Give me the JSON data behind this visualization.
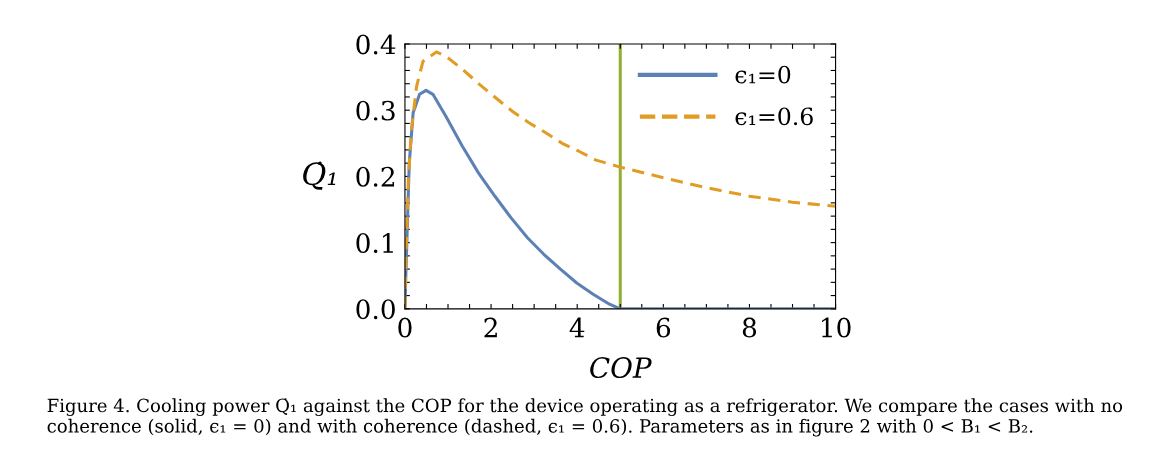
{
  "chart_data": {
    "type": "line",
    "xlabel": "COP",
    "ylabel": "Q̇₁",
    "xlim": [
      0,
      10
    ],
    "ylim": [
      0,
      0.4
    ],
    "xticks": [
      0,
      {
        "value": 0.5,
        "label": null
      },
      {
        "value": 1,
        "label": null
      },
      {
        "value": 1.5,
        "label": null
      },
      2,
      {
        "value": 2.5,
        "label": null
      },
      {
        "value": 3,
        "label": null
      },
      {
        "value": 3.5,
        "label": null
      },
      4,
      {
        "value": 4.5,
        "label": null
      },
      {
        "value": 5,
        "label": null
      },
      {
        "value": 5.5,
        "label": null
      },
      6,
      {
        "value": 6.5,
        "label": null
      },
      {
        "value": 7,
        "label": null
      },
      {
        "value": 7.5,
        "label": null
      },
      8,
      {
        "value": 8.5,
        "label": null
      },
      {
        "value": 9,
        "label": null
      },
      {
        "value": 9.5,
        "label": null
      },
      10
    ],
    "yticks": [
      {
        "value": 0,
        "label": "0.0"
      },
      {
        "value": 0.02,
        "label": null
      },
      {
        "value": 0.04,
        "label": null
      },
      {
        "value": 0.06,
        "label": null
      },
      {
        "value": 0.08,
        "label": null
      },
      0.1,
      {
        "value": 0.12,
        "label": null
      },
      {
        "value": 0.14,
        "label": null
      },
      {
        "value": 0.16,
        "label": null
      },
      {
        "value": 0.18,
        "label": null
      },
      0.2,
      {
        "value": 0.22,
        "label": null
      },
      {
        "value": 0.24,
        "label": null
      },
      {
        "value": 0.26,
        "label": null
      },
      {
        "value": 0.28,
        "label": null
      },
      0.3,
      {
        "value": 0.32,
        "label": null
      },
      {
        "value": 0.34,
        "label": null
      },
      {
        "value": 0.36,
        "label": null
      },
      {
        "value": 0.38,
        "label": null
      },
      0.4
    ],
    "grid": false,
    "legend": "top right",
    "series": [
      {
        "name": "ϵ₁=0",
        "color": "#5e81b5",
        "line_style": "solid",
        "x": [
          0,
          0.02,
          0.1,
          0.19,
          0.34,
          0.49,
          0.65,
          0.95,
          1.33,
          1.71,
          2.09,
          2.47,
          2.85,
          3.23,
          3.61,
          3.99,
          4.37,
          4.75,
          5.0,
          6,
          8,
          10
        ],
        "values": [
          0,
          0.049,
          0.22,
          0.296,
          0.324,
          0.33,
          0.324,
          0.291,
          0.246,
          0.205,
          0.17,
          0.137,
          0.107,
          0.082,
          0.06,
          0.039,
          0.022,
          0.007,
          0,
          0,
          0,
          0
        ]
      },
      {
        "name": "ϵ₁=0.6",
        "color": "#e19c24",
        "line_style": "dashed",
        "x": [
          0,
          0.02,
          0.08,
          0.15,
          0.27,
          0.42,
          0.73,
          0.96,
          1.35,
          1.73,
          2.12,
          2.5,
          2.88,
          3.27,
          3.65,
          4.04,
          4.42,
          5.0,
          6,
          7,
          8,
          9,
          10
        ],
        "values": [
          0,
          0.07,
          0.195,
          0.27,
          0.336,
          0.374,
          0.388,
          0.381,
          0.361,
          0.339,
          0.318,
          0.298,
          0.281,
          0.266,
          0.25,
          0.238,
          0.225,
          0.214,
          0.198,
          0.183,
          0.17,
          0.161,
          0.155
        ]
      }
    ],
    "ref_lines": [
      {
        "axis": "x",
        "value": 5,
        "color": "#8fb131",
        "line_style": "solid"
      }
    ],
    "annotations": [
      "Figure 4. Cooling power Q̇₁ against the COP for the device operating as a refrigerator. We compare the cases with no coherence (solid, ϵ₁ = 0) and with coherence (dashed, ϵ₁ = 0.6). Parameters as in figure 2 with 0 < B₁ < B₂."
    ]
  }
}
